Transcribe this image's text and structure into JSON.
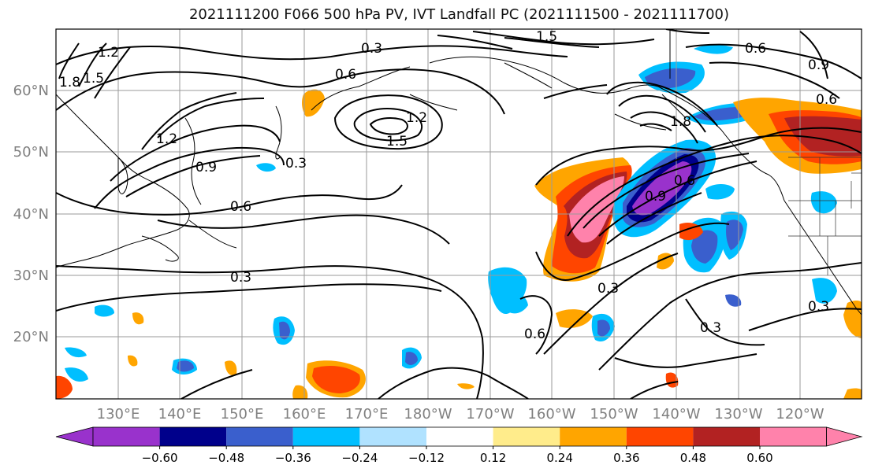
{
  "title": "2021111200 F066 500 hPa PV, IVT Landfall PC (2021111500 - 2021111700)",
  "map": {
    "lat_labels": [
      "60°N",
      "50°N",
      "40°N",
      "30°N",
      "20°N"
    ],
    "lon_labels": [
      "130°E",
      "140°E",
      "150°E",
      "160°E",
      "170°E",
      "180°W",
      "170°W",
      "160°W",
      "150°W",
      "140°W",
      "130°W",
      "120°W"
    ],
    "contour_labels": [
      "0.3",
      "0.6",
      "0.9",
      "1.2",
      "1.5",
      "1.8"
    ]
  },
  "colorbar": {
    "tick_labels": [
      "−0.60",
      "−0.48",
      "−0.36",
      "−0.24",
      "−0.12",
      "0.12",
      "0.24",
      "0.36",
      "0.48",
      "0.60"
    ],
    "colors": [
      "#9932CC",
      "#00008B",
      "#3A5FCD",
      "#00BFFF",
      "#B0E2FF",
      "#FFFFFF",
      "#FFEC8B",
      "#FFA500",
      "#FF4500",
      "#B22222",
      "#FF82AB"
    ]
  }
}
